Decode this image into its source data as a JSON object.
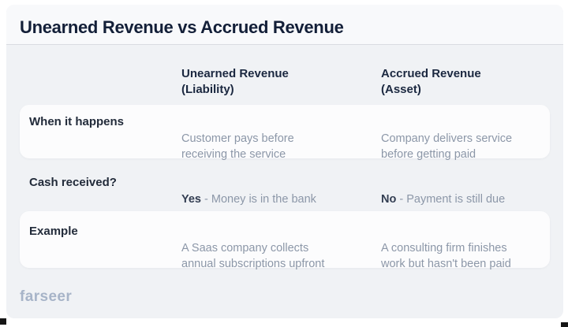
{
  "title": "Unearned Revenue vs Accrued Revenue",
  "table": {
    "columns": [
      {
        "name": "Unearned Revenue\n(Liability)"
      },
      {
        "name": "Accrued Revenue\n(Asset)"
      }
    ],
    "rows": [
      {
        "label": "When it happens",
        "cells": [
          {
            "lead": "",
            "text": "Customer pays before\nreceiving the service"
          },
          {
            "lead": "",
            "text": "Company delivers service\nbefore getting paid"
          }
        ]
      },
      {
        "label": "Cash received?",
        "cells": [
          {
            "lead": "Yes ",
            "text": "- Money is in the bank"
          },
          {
            "lead": "No ",
            "text": "- Payment is still due"
          }
        ]
      },
      {
        "label": "Example",
        "cells": [
          {
            "lead": "",
            "text": "A Saas company collects\nannual subscriptions upfront"
          },
          {
            "lead": "",
            "text": "A consulting firm finishes\nwork but hasn't been paid"
          }
        ]
      }
    ]
  },
  "footer": {
    "logo": "farseer"
  },
  "colors": {
    "card_background": "#f0f2f5",
    "row_background": "#fcfcfd",
    "title_text": "#131f38",
    "body_text": "#8c97a8",
    "logo_text": "#a7b4c8"
  },
  "chart_data": {
    "type": "table",
    "title": "Unearned Revenue vs Accrued Revenue",
    "columns": [
      "",
      "Unearned Revenue (Liability)",
      "Accrued Revenue (Asset)"
    ],
    "rows": [
      [
        "When it happens",
        "Customer pays before receiving the service",
        "Company delivers service before getting paid"
      ],
      [
        "Cash received?",
        "Yes - Money is in the bank",
        "No - Payment is still due"
      ],
      [
        "Example",
        "A Saas company collects annual subscriptions upfront",
        "A consulting firm finishes work but hasn't been paid"
      ]
    ]
  }
}
